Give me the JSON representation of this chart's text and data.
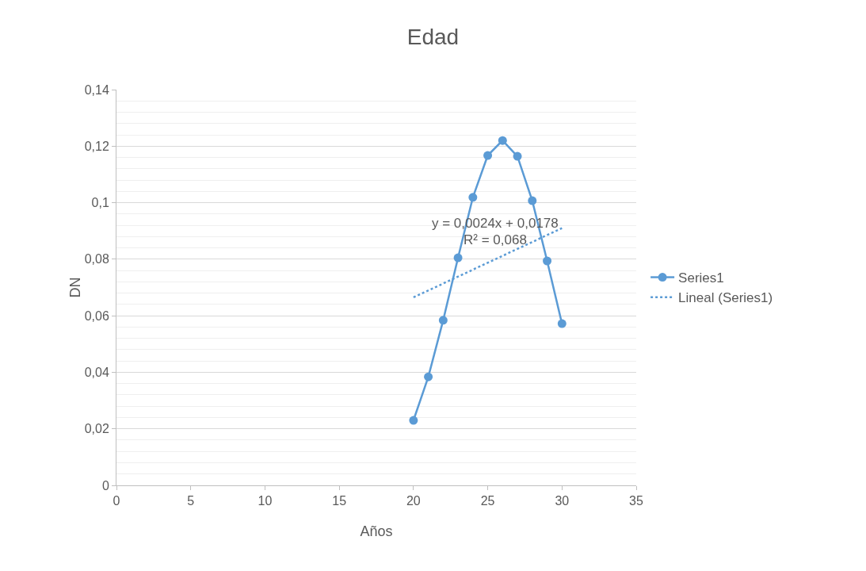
{
  "chart_data": {
    "type": "line",
    "title": "Edad",
    "xlabel": "Años",
    "ylabel": "DN",
    "xlim": [
      0,
      35
    ],
    "xticks": [
      0,
      5,
      10,
      15,
      20,
      25,
      30,
      35
    ],
    "ylim": [
      0,
      0.14
    ],
    "yticks": [
      0,
      {
        "value": 0.02,
        "label": "0,02"
      },
      {
        "value": 0.04,
        "label": "0,04"
      },
      {
        "value": 0.06,
        "label": "0,06"
      },
      {
        "value": 0.08,
        "label": "0,08"
      },
      {
        "value": 0.1,
        "label": "0,1"
      },
      {
        "value": 0.12,
        "label": "0,12"
      },
      {
        "value": 0.14,
        "label": "0,14"
      }
    ],
    "grid": "y",
    "legend": "right",
    "series": [
      {
        "name": "Series1",
        "type": "line",
        "color": "#5b9bd5",
        "marker": "circle",
        "line_style": "solid",
        "x": [
          20,
          21,
          22,
          23,
          24,
          25,
          26,
          27,
          28,
          29,
          30
        ],
        "values": [
          0.023,
          0.0384,
          0.0584,
          0.0805,
          0.1019,
          0.1167,
          0.122,
          0.1164,
          0.1007,
          0.0794,
          0.0572
        ]
      },
      {
        "name": "Lineal (Series1)",
        "type": "line",
        "color": "#5b9bd5",
        "marker": "none",
        "line_style": "dotted",
        "x": [
          20,
          30
        ],
        "values": [
          0.0665,
          0.091
        ]
      }
    ],
    "annotations": [
      "y = 0,0024x + 0,0178",
      "R² = 0,068"
    ]
  }
}
